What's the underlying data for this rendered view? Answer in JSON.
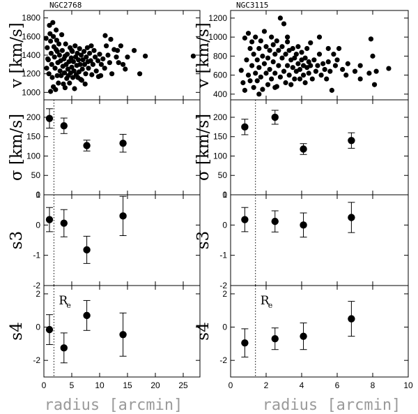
{
  "x_label": "radius [arcmin]",
  "row_labels": [
    "v [km/s]",
    "σ [km/s]",
    "s3",
    "s4"
  ],
  "annotation": {
    "main": "R",
    "sub": "e"
  },
  "chart_data": [
    {
      "name": "NGC2768",
      "type": "scatter",
      "title": "NGC2768",
      "xlabel": "radius [arcmin]",
      "xlim": [
        0,
        28
      ],
      "xticks": [
        0,
        5,
        10,
        15,
        20,
        25
      ],
      "re_line_x": 1.8,
      "panels": {
        "v": {
          "ylabel": "v [km/s]",
          "ylim": [
            920,
            1880
          ],
          "yticks": [
            1000,
            1200,
            1400,
            1600,
            1800
          ],
          "points": [
            [
              0.4,
              1580
            ],
            [
              0.6,
              1480
            ],
            [
              0.8,
              1350
            ],
            [
              0.9,
              1200
            ],
            [
              1.0,
              1720
            ],
            [
              1.1,
              1630
            ],
            [
              1.2,
              1550
            ],
            [
              1.3,
              1420
            ],
            [
              1.4,
              1300
            ],
            [
              1.5,
              1160
            ],
            [
              1.6,
              1750
            ],
            [
              1.7,
              1600
            ],
            [
              1.8,
              1490
            ],
            [
              1.9,
              1380
            ],
            [
              2.0,
              1260
            ],
            [
              2.1,
              1030
            ],
            [
              2.2,
              1670
            ],
            [
              2.3,
              1560
            ],
            [
              2.4,
              1440
            ],
            [
              2.5,
              1320
            ],
            [
              2.6,
              1100
            ],
            [
              2.7,
              1520
            ],
            [
              2.8,
              1400
            ],
            [
              2.9,
              1230
            ],
            [
              3.0,
              1340
            ],
            [
              3.1,
              1180
            ],
            [
              3.3,
              1450
            ],
            [
              3.4,
              1280
            ],
            [
              3.5,
              1090
            ],
            [
              3.6,
              1360
            ],
            [
              3.7,
              1210
            ],
            [
              3.8,
              1050
            ],
            [
              3.9,
              1520
            ],
            [
              4.0,
              1300
            ],
            [
              4.1,
              1150
            ],
            [
              4.2,
              1410
            ],
            [
              4.3,
              1250
            ],
            [
              4.5,
              1330
            ],
            [
              4.6,
              1100
            ],
            [
              4.7,
              1480
            ],
            [
              4.8,
              1210
            ],
            [
              4.9,
              1370
            ],
            [
              5.0,
              1270
            ],
            [
              5.1,
              1440
            ],
            [
              5.2,
              1160
            ],
            [
              5.3,
              1330
            ],
            [
              5.4,
              1230
            ],
            [
              5.6,
              1500
            ],
            [
              5.7,
              1380
            ],
            [
              5.8,
              1190
            ],
            [
              5.9,
              1290
            ],
            [
              6.0,
              1420
            ],
            [
              6.2,
              1350
            ],
            [
              6.3,
              1220
            ],
            [
              6.4,
              1470
            ],
            [
              6.5,
              1300
            ],
            [
              6.6,
              1140
            ],
            [
              6.7,
              1400
            ],
            [
              6.9,
              1250
            ],
            [
              7.0,
              1350
            ],
            [
              7.2,
              1440
            ],
            [
              7.3,
              1300
            ],
            [
              7.5,
              1200
            ],
            [
              7.6,
              1380
            ],
            [
              7.8,
              1480
            ],
            [
              7.9,
              1330
            ],
            [
              8.0,
              1260
            ],
            [
              8.2,
              1420
            ],
            [
              8.4,
              1340
            ],
            [
              8.6,
              1190
            ],
            [
              8.8,
              1300
            ],
            [
              9.0,
              1450
            ],
            [
              9.2,
              1380
            ],
            [
              9.4,
              1230
            ],
            [
              9.7,
              1340
            ],
            [
              10.0,
              1410
            ],
            [
              10.3,
              1300
            ],
            [
              10.6,
              1360
            ],
            [
              10.9,
              1260
            ],
            [
              11.2,
              1500
            ],
            [
              11.5,
              1400
            ],
            [
              11.8,
              1320
            ],
            [
              12.2,
              1200
            ],
            [
              12.6,
              1460
            ],
            [
              13.0,
              1380
            ],
            [
              13.4,
              1320
            ],
            [
              13.8,
              1500
            ],
            [
              14.2,
              1300
            ],
            [
              14.6,
              1250
            ],
            [
              15.0,
              1380
            ],
            [
              1.2,
              1010
            ],
            [
              2.4,
              1180
            ],
            [
              3.2,
              1620
            ],
            [
              4.4,
              1180
            ],
            [
              5.5,
              1040
            ],
            [
              6.8,
              1130
            ],
            [
              8.5,
              1500
            ],
            [
              9.8,
              1170
            ],
            [
              11.0,
              1610
            ],
            [
              12.0,
              1570
            ],
            [
              13.2,
              1450
            ],
            [
              17.2,
              1200
            ],
            [
              18.2,
              1390
            ],
            [
              26.8,
              1390
            ],
            [
              0.5,
              1260
            ],
            [
              0.7,
              1360
            ],
            [
              1.7,
              1060
            ],
            [
              2.2,
              1460
            ],
            [
              3.8,
              1390
            ],
            [
              5.0,
              1450
            ],
            [
              6.1,
              1160
            ],
            [
              7.4,
              1090
            ],
            [
              10.2,
              1180
            ],
            [
              16.2,
              1450
            ]
          ]
        },
        "sigma": {
          "ylabel": "σ [km/s]",
          "ylim": [
            0,
            245
          ],
          "yticks": [
            0,
            50,
            100,
            150,
            200
          ],
          "points": [
            [
              1.0,
              197,
              25
            ],
            [
              3.6,
              178,
              20
            ],
            [
              7.7,
              127,
              14
            ],
            [
              14.2,
              133,
              23
            ]
          ]
        },
        "s3": {
          "ylabel": "s3",
          "ylim": [
            -2,
            1
          ],
          "yticks": [
            -2,
            -1,
            0,
            1
          ],
          "points": [
            [
              1.0,
              0.18,
              0.4
            ],
            [
              3.6,
              0.06,
              0.45
            ],
            [
              7.7,
              -0.82,
              0.45
            ],
            [
              14.2,
              0.3,
              0.65
            ]
          ]
        },
        "s4": {
          "ylabel": "s4",
          "ylim": [
            -3,
            2.5
          ],
          "yticks": [
            -2,
            0,
            2
          ],
          "points": [
            [
              1.0,
              -0.15,
              0.9
            ],
            [
              3.6,
              -1.25,
              0.9
            ],
            [
              7.7,
              0.7,
              0.9
            ],
            [
              14.2,
              -0.45,
              1.3
            ]
          ]
        }
      }
    },
    {
      "name": "NGC3115",
      "type": "scatter",
      "title": "NGC3115",
      "xlabel": "radius [arcmin]",
      "xlim": [
        0,
        10
      ],
      "xticks": [
        0,
        2,
        4,
        6,
        8,
        10
      ],
      "re_line_x": 1.4,
      "panels": {
        "v": {
          "ylabel": "v [km/s]",
          "ylim": [
            340,
            1280
          ],
          "yticks": [
            400,
            600,
            800,
            1000,
            1200
          ],
          "points": [
            [
              0.6,
              650
            ],
            [
              0.7,
              520
            ],
            [
              0.8,
              990
            ],
            [
              0.9,
              760
            ],
            [
              1.0,
              600
            ],
            [
              1.0,
              1040
            ],
            [
              1.1,
              880
            ],
            [
              1.1,
              540
            ],
            [
              1.2,
              700
            ],
            [
              1.2,
              950
            ],
            [
              1.3,
              470
            ],
            [
              1.3,
              820
            ],
            [
              1.4,
              620
            ],
            [
              1.4,
              1000
            ],
            [
              1.5,
              760
            ],
            [
              1.5,
              540
            ],
            [
              1.6,
              880
            ],
            [
              1.6,
              680
            ],
            [
              1.7,
              960
            ],
            [
              1.7,
              580
            ],
            [
              1.8,
              800
            ],
            [
              1.8,
              450
            ],
            [
              1.9,
              720
            ],
            [
              1.9,
              1060
            ],
            [
              2.0,
              620
            ],
            [
              2.0,
              900
            ],
            [
              2.1,
              500
            ],
            [
              2.1,
              780
            ],
            [
              2.2,
              860
            ],
            [
              2.2,
              660
            ],
            [
              2.3,
              1000
            ],
            [
              2.3,
              560
            ],
            [
              2.4,
              740
            ],
            [
              2.4,
              920
            ],
            [
              2.5,
              620
            ],
            [
              2.5,
              820
            ],
            [
              2.6,
              480
            ],
            [
              2.6,
              960
            ],
            [
              2.7,
              700
            ],
            [
              2.7,
              860
            ],
            [
              2.8,
              580
            ],
            [
              2.8,
              1200
            ],
            [
              2.9,
              780
            ],
            [
              2.9,
              900
            ],
            [
              3.0,
              640
            ],
            [
              3.0,
              1140
            ],
            [
              3.1,
              820
            ],
            [
              3.1,
              520
            ],
            [
              3.2,
              700
            ],
            [
              3.2,
              950
            ],
            [
              3.3,
              600
            ],
            [
              3.3,
              860
            ],
            [
              3.4,
              760
            ],
            [
              3.4,
              500
            ],
            [
              3.5,
              880
            ],
            [
              3.5,
              680
            ],
            [
              3.6,
              780
            ],
            [
              3.6,
              560
            ],
            [
              3.7,
              820
            ],
            [
              3.7,
              640
            ],
            [
              3.8,
              720
            ],
            [
              3.8,
              900
            ],
            [
              3.9,
              660
            ],
            [
              3.9,
              560
            ],
            [
              4.0,
              760
            ],
            [
              4.0,
              840
            ],
            [
              4.1,
              700
            ],
            [
              4.1,
              600
            ],
            [
              4.2,
              780
            ],
            [
              4.2,
              520
            ],
            [
              4.3,
              680
            ],
            [
              4.3,
              880
            ],
            [
              4.4,
              620
            ],
            [
              4.4,
              740
            ],
            [
              4.5,
              700
            ],
            [
              4.6,
              560
            ],
            [
              4.7,
              760
            ],
            [
              4.8,
              640
            ],
            [
              4.9,
              700
            ],
            [
              5.0,
              820
            ],
            [
              5.1,
              600
            ],
            [
              5.2,
              720
            ],
            [
              5.3,
              660
            ],
            [
              5.4,
              560
            ],
            [
              5.5,
              740
            ],
            [
              5.6,
              640
            ],
            [
              5.7,
              440
            ],
            [
              5.8,
              820
            ],
            [
              5.9,
              700
            ],
            [
              6.0,
              760
            ],
            [
              6.3,
              660
            ],
            [
              6.6,
              720
            ],
            [
              7.0,
              640
            ],
            [
              7.3,
              700
            ],
            [
              7.8,
              620
            ],
            [
              7.9,
              980
            ],
            [
              8.0,
              800
            ],
            [
              8.1,
              500
            ],
            [
              8.2,
              640
            ],
            [
              8.9,
              670
            ],
            [
              0.8,
              440
            ],
            [
              1.6,
              400
            ],
            [
              2.5,
              470
            ],
            [
              3.2,
              1000
            ],
            [
              4.5,
              940
            ],
            [
              5.0,
              1000
            ],
            [
              5.5,
              880
            ],
            [
              6.1,
              880
            ],
            [
              6.5,
              600
            ],
            [
              7.3,
              560
            ]
          ]
        },
        "sigma": {
          "ylabel": "σ [km/s]",
          "ylim": [
            0,
            245
          ],
          "yticks": [
            0,
            50,
            100,
            150,
            200
          ],
          "points": [
            [
              0.8,
              175,
              20
            ],
            [
              2.5,
              200,
              18
            ],
            [
              4.1,
              118,
              14
            ],
            [
              6.8,
              140,
              20
            ]
          ]
        },
        "s3": {
          "ylabel": "s3",
          "ylim": [
            -2,
            1
          ],
          "yticks": [
            -2,
            -1,
            0,
            1
          ],
          "points": [
            [
              0.8,
              0.18,
              0.4
            ],
            [
              2.5,
              0.12,
              0.35
            ],
            [
              4.1,
              0.0,
              0.4
            ],
            [
              6.8,
              0.25,
              0.5
            ]
          ]
        },
        "s4": {
          "ylabel": "s4",
          "ylim": [
            -3,
            2.5
          ],
          "yticks": [
            -2,
            0,
            2
          ],
          "points": [
            [
              0.8,
              -0.95,
              0.85
            ],
            [
              2.5,
              -0.7,
              0.65
            ],
            [
              4.1,
              -0.55,
              0.8
            ],
            [
              6.8,
              0.5,
              1.05
            ]
          ]
        }
      }
    }
  ]
}
